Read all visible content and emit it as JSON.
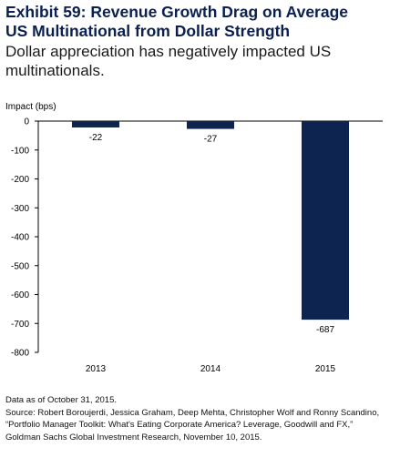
{
  "header": {
    "title_line1": "Exhibit 59: Revenue Growth Drag on Average",
    "title_line2": "US Multinational from Dollar Strength",
    "subtitle_line1": "Dollar appreciation has negatively impacted US",
    "subtitle_line2": "multinationals."
  },
  "chart_data": {
    "type": "bar",
    "ylabel": "Impact (bps)",
    "xlabel": "",
    "categories": [
      "2013",
      "2014",
      "2015"
    ],
    "values": [
      -22,
      -27,
      -687
    ],
    "data_labels": [
      "-22",
      "-27",
      "-687"
    ],
    "ylim": [
      -800,
      0
    ],
    "yticks": [
      0,
      -100,
      -200,
      -300,
      -400,
      -500,
      -600,
      -700,
      -800
    ],
    "ytick_labels": [
      "0",
      "-100",
      "-200",
      "-300",
      "-400",
      "-500",
      "-600",
      "-700",
      "-800"
    ],
    "grid": false,
    "bar_color": "#0e2450"
  },
  "footer": {
    "line1": "Data as of October 31, 2015.",
    "line2": "Source: Robert Boroujerdi, Jessica Graham, Deep Mehta, Christopher Wolf and Ronny Scandino,",
    "line3": "“Portfolio Manager Toolkit: What's Eating Corporate America? Leverage, Goodwill and FX,”",
    "line4": "Goldman Sachs Global Investment Research, November 10, 2015."
  }
}
